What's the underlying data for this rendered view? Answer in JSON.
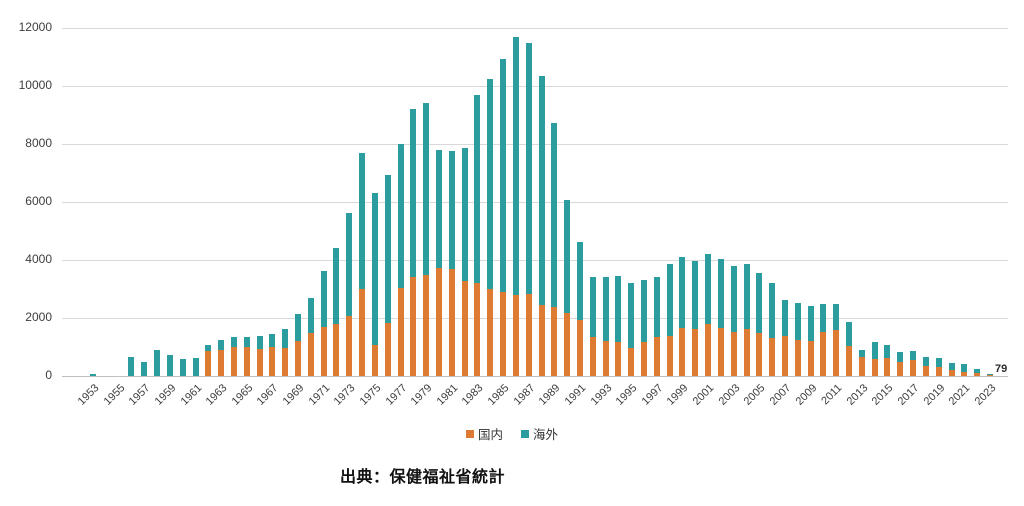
{
  "source_note": "出典：保健福祉省統計",
  "end_label": {
    "text": "79",
    "year": "2023"
  },
  "colors": {
    "domestic": "#dd7b33",
    "overseas": "#2b9d9e",
    "gridline": "#d9d9d9",
    "baseline": "#c0c0c0",
    "text": "#3d3d3d"
  },
  "legend": {
    "items": [
      {
        "label": "国内"
      },
      {
        "label": "海外"
      }
    ]
  },
  "chart_data": {
    "type": "bar",
    "stacked": true,
    "title": "",
    "xlabel": "",
    "ylabel": "",
    "ylim": [
      0,
      12000
    ],
    "yticks": [
      "0",
      "2000",
      "4000",
      "6000",
      "8000",
      "10000",
      "12000"
    ],
    "grid": true,
    "legend_position": "bottom",
    "xtick_shown_every": 2,
    "categories": [
      "1953",
      "1954",
      "1955",
      "1956",
      "1957",
      "1958",
      "1959",
      "1960",
      "1961",
      "1962",
      "1963",
      "1964",
      "1965",
      "1966",
      "1967",
      "1968",
      "1969",
      "1970",
      "1971",
      "1972",
      "1973",
      "1974",
      "1975",
      "1976",
      "1977",
      "1978",
      "1979",
      "1980",
      "1981",
      "1982",
      "1983",
      "1984",
      "1985",
      "1986",
      "1987",
      "1988",
      "1989",
      "1990",
      "1991",
      "1992",
      "1993",
      "1994",
      "1995",
      "1996",
      "1997",
      "1998",
      "1999",
      "2000",
      "2001",
      "2002",
      "2003",
      "2004",
      "2005",
      "2006",
      "2007",
      "2008",
      "2009",
      "2010",
      "2011",
      "2012",
      "2013",
      "2014",
      "2015",
      "2016",
      "2017",
      "2018",
      "2019",
      "2020",
      "2021",
      "2022",
      "2023"
    ],
    "series": [
      {
        "name": "国内",
        "color": "#dd7b33",
        "values": [
          0,
          0,
          0,
          0,
          0,
          0,
          0,
          0,
          0,
          860,
          900,
          990,
          1010,
          940,
          990,
          970,
          1200,
          1480,
          1700,
          1800,
          2070,
          3000,
          1070,
          1820,
          3050,
          3420,
          3480,
          3710,
          3680,
          3290,
          3190,
          3010,
          2900,
          2790,
          2830,
          2450,
          2370,
          2160,
          1930,
          1340,
          1200,
          1160,
          980,
          1160,
          1350,
          1370,
          1670,
          1620,
          1780,
          1670,
          1530,
          1620,
          1480,
          1300,
          1370,
          1250,
          1210,
          1510,
          1580,
          1050,
          640,
          590,
          610,
          470,
          550,
          345,
          300,
          210,
          150,
          115,
          45
        ]
      },
      {
        "name": "海外",
        "color": "#2b9d9e",
        "values": [
          70,
          0,
          0,
          650,
          470,
          900,
          720,
          600,
          620,
          200,
          340,
          370,
          320,
          440,
          470,
          640,
          950,
          1220,
          1920,
          2610,
          3540,
          4700,
          5250,
          5110,
          4950,
          5780,
          5940,
          4080,
          4090,
          4560,
          6510,
          7220,
          8020,
          8890,
          8640,
          7880,
          6370,
          3910,
          2700,
          2060,
          2200,
          2280,
          2210,
          2140,
          2080,
          2480,
          2440,
          2360,
          2410,
          2350,
          2280,
          2250,
          2070,
          1890,
          1240,
          1270,
          1190,
          960,
          890,
          800,
          260,
          590,
          460,
          370,
          310,
          295,
          320,
          230,
          260,
          115,
          34
        ]
      }
    ]
  }
}
